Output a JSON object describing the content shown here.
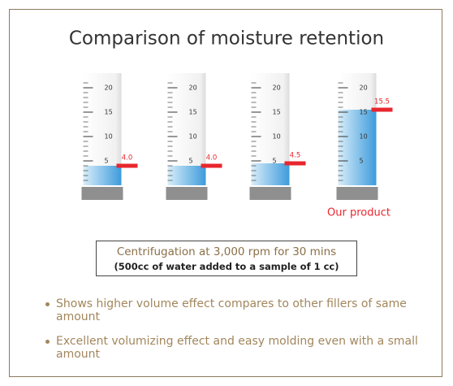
{
  "chart_data": {
    "type": "cylinder",
    "title": "Comparison of moisture retention",
    "categories": [
      null,
      null,
      null,
      "Our product"
    ],
    "values": [
      4.0,
      4.0,
      4.5,
      15.5
    ],
    "value_labels": [
      "4.0",
      "4.0",
      "4.5",
      "15.5"
    ],
    "color": "#4aa3df",
    "marker_color": "#e8262d",
    "ylim": [
      0,
      20
    ],
    "yticks": [
      5,
      10,
      15,
      20
    ]
  },
  "caption": {
    "line1": "Centrifugation at 3,000 rpm for 30 mins",
    "line2": "(500cc of water added to a sample of 1 cc)"
  },
  "bullets": [
    "Shows higher volume effect compares to other fillers of same amount",
    "Excellent volumizing effect and easy molding even with a small amount"
  ]
}
